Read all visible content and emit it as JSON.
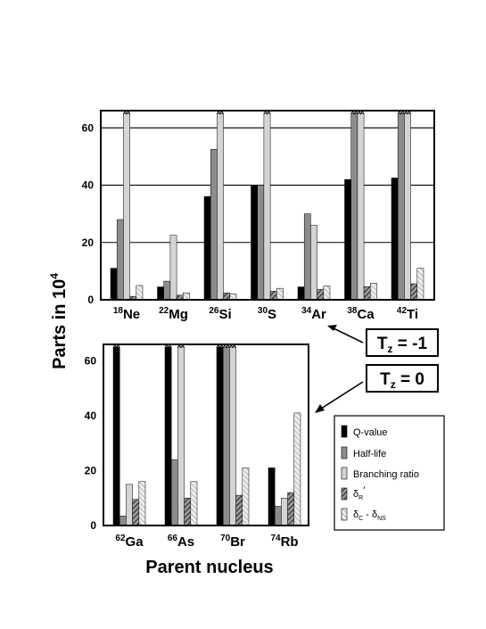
{
  "chart_data": [
    {
      "type": "bar",
      "annotation": "Tz = -1",
      "categories": [
        {
          "mass": "18",
          "symbol": "Ne"
        },
        {
          "mass": "22",
          "symbol": "Mg"
        },
        {
          "mass": "26",
          "symbol": "Si"
        },
        {
          "mass": "30",
          "symbol": "S"
        },
        {
          "mass": "34",
          "symbol": "Ar"
        },
        {
          "mass": "38",
          "symbol": "Ca"
        },
        {
          "mass": "42",
          "symbol": "Ti"
        }
      ],
      "ylim": [
        0,
        66
      ],
      "yticks": [
        0,
        20,
        40,
        60
      ],
      "grid": true,
      "series": [
        {
          "name": "Q-value",
          "values": [
            11,
            4.5,
            36,
            40,
            4.5,
            42,
            42.5
          ],
          "broken": [
            false,
            false,
            false,
            false,
            false,
            false,
            false
          ]
        },
        {
          "name": "Half-life",
          "values": [
            28,
            6.5,
            52.5,
            40,
            30,
            65,
            65
          ],
          "broken": [
            false,
            false,
            false,
            false,
            false,
            true,
            true
          ]
        },
        {
          "name": "Branching ratio",
          "values": [
            65,
            22.5,
            65,
            65,
            26,
            65,
            65
          ],
          "broken": [
            true,
            false,
            true,
            true,
            false,
            true,
            true
          ]
        },
        {
          "name": "δR'",
          "values": [
            1.2,
            1.6,
            2.4,
            3,
            3.6,
            4.6,
            5.6
          ],
          "broken": [
            false,
            false,
            false,
            false,
            false,
            false,
            false
          ]
        },
        {
          "name": "δC - δNS",
          "values": [
            5,
            2.4,
            2,
            4,
            4.8,
            5.8,
            11
          ],
          "broken": [
            false,
            false,
            false,
            false,
            false,
            false,
            false
          ]
        }
      ]
    },
    {
      "type": "bar",
      "annotation": "Tz = 0",
      "categories": [
        {
          "mass": "62",
          "symbol": "Ga"
        },
        {
          "mass": "66",
          "symbol": "As"
        },
        {
          "mass": "70",
          "symbol": "Br"
        },
        {
          "mass": "74",
          "symbol": "Rb"
        }
      ],
      "ylim": [
        0,
        66
      ],
      "yticks": [
        0,
        20,
        40,
        60
      ],
      "grid": false,
      "series": [
        {
          "name": "Q-value",
          "values": [
            65,
            65,
            65,
            21
          ],
          "broken": [
            true,
            true,
            true,
            false
          ]
        },
        {
          "name": "Half-life",
          "values": [
            3.5,
            24,
            65,
            7
          ],
          "broken": [
            false,
            false,
            true,
            false
          ]
        },
        {
          "name": "Branching ratio",
          "values": [
            15,
            65,
            65,
            10
          ],
          "broken": [
            false,
            true,
            true,
            false
          ]
        },
        {
          "name": "δR'",
          "values": [
            9.5,
            10,
            11,
            12
          ],
          "broken": [
            false,
            false,
            false,
            false
          ]
        },
        {
          "name": "δC - δNS",
          "values": [
            16,
            16,
            21,
            41
          ],
          "broken": [
            false,
            false,
            false,
            false
          ]
        }
      ]
    }
  ],
  "ylabel": {
    "base": "Parts in 10",
    "exp": "4"
  },
  "xlabel": "Parent nucleus",
  "annotations": [
    {
      "main": "T",
      "sub": "z",
      "rest": " = -1"
    },
    {
      "main": "T",
      "sub": "z",
      "rest": " = 0"
    }
  ],
  "legend": [
    {
      "label": "Q-value"
    },
    {
      "label": "Half-life"
    },
    {
      "label": "Branching ratio"
    },
    {
      "label": "δ",
      "sub": "R",
      "prime": "′"
    },
    {
      "label": "δ",
      "sub": "C",
      "rest": " - δ",
      "sub2": "NS"
    }
  ],
  "colors": {
    "q_value": "#000000",
    "half_life": "#8c8c8c",
    "branching_ratio": "#d4d4d4",
    "delta_r_hatch": "#444444",
    "delta_c_hatch": "#b0b0b0"
  }
}
